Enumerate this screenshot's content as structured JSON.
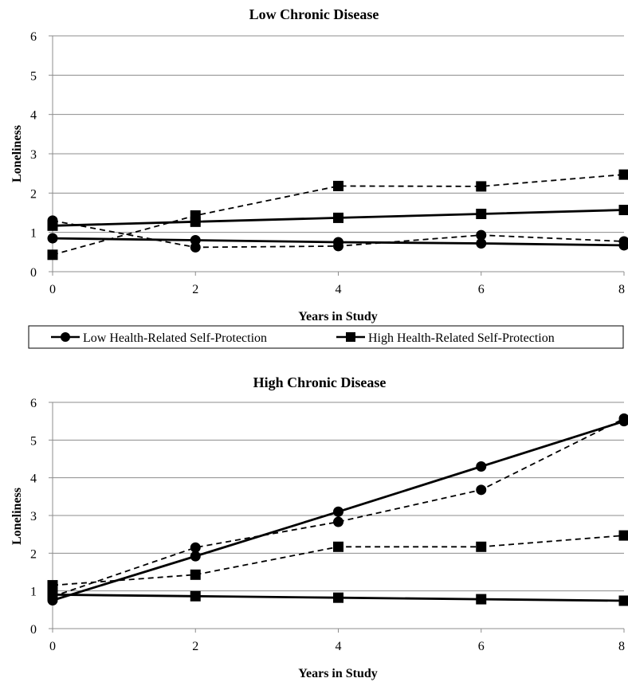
{
  "chart_data": [
    {
      "type": "line",
      "title": "Low Chronic Disease",
      "xlabel": "Years in Study",
      "ylabel": "Loneliness",
      "xlim": [
        0,
        8
      ],
      "ylim": [
        0,
        6
      ],
      "x_ticks": [
        "0",
        "2",
        "4",
        "6",
        "8"
      ],
      "y_ticks": [
        "0",
        "1",
        "2",
        "3",
        "4",
        "5",
        "6"
      ],
      "grid": "horizontal",
      "x": [
        0,
        2,
        4,
        6,
        8
      ],
      "series": [
        {
          "marker": "circle",
          "style": "solid",
          "values": [
            0.85,
            0.8,
            0.75,
            0.72,
            0.67
          ]
        },
        {
          "marker": "circle",
          "style": "dashed",
          "values": [
            1.3,
            0.62,
            0.65,
            0.93,
            0.77
          ]
        },
        {
          "marker": "square",
          "style": "solid",
          "values": [
            1.17,
            1.27,
            1.37,
            1.47,
            1.57
          ]
        },
        {
          "marker": "square",
          "style": "dashed",
          "values": [
            0.43,
            1.43,
            2.18,
            2.17,
            2.47
          ]
        }
      ]
    },
    {
      "type": "line",
      "title": "High Chronic Disease",
      "xlabel": "Years in Study",
      "ylabel": "Loneliness",
      "xlim": [
        0,
        8
      ],
      "ylim": [
        0,
        6
      ],
      "x_ticks": [
        "0",
        "2",
        "4",
        "6",
        "8"
      ],
      "y_ticks": [
        "0",
        "1",
        "2",
        "3",
        "4",
        "5",
        "6"
      ],
      "grid": "horizontal",
      "x": [
        0,
        2,
        4,
        6,
        8
      ],
      "series": [
        {
          "marker": "circle",
          "style": "solid",
          "values": [
            0.75,
            1.92,
            3.1,
            4.3,
            5.5
          ]
        },
        {
          "marker": "circle",
          "style": "dashed",
          "values": [
            0.85,
            2.15,
            2.83,
            3.68,
            5.57
          ]
        },
        {
          "marker": "square",
          "style": "solid",
          "values": [
            0.9,
            0.86,
            0.82,
            0.78,
            0.74
          ]
        },
        {
          "marker": "square",
          "style": "dashed",
          "values": [
            1.15,
            1.43,
            2.17,
            2.17,
            2.47
          ]
        }
      ]
    }
  ],
  "legend": {
    "items": [
      {
        "label": "Low Health-Related Self-Protection",
        "marker": "circle"
      },
      {
        "label": "High Health-Related Self-Protection",
        "marker": "square"
      }
    ]
  }
}
